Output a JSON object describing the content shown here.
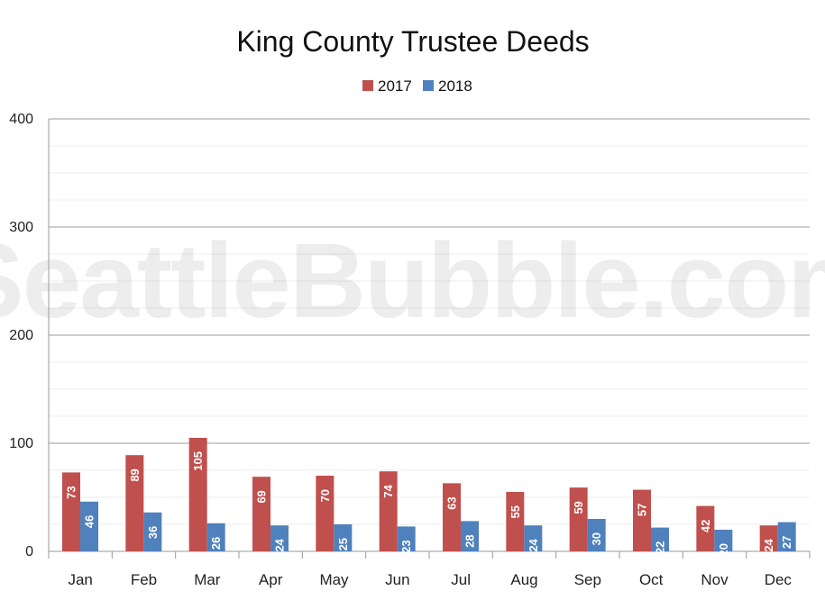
{
  "watermark": "SeattleBubble.com",
  "chart_data": {
    "type": "bar",
    "title": "King County Trustee Deeds",
    "xlabel": "",
    "ylabel": "",
    "categories": [
      "Jan",
      "Feb",
      "Mar",
      "Apr",
      "May",
      "Jun",
      "Jul",
      "Aug",
      "Sep",
      "Oct",
      "Nov",
      "Dec"
    ],
    "series": [
      {
        "name": "2017",
        "color": "#c0504d",
        "values": [
          73,
          89,
          105,
          69,
          70,
          74,
          63,
          55,
          59,
          57,
          42,
          24
        ]
      },
      {
        "name": "2018",
        "color": "#4f81bd",
        "values": [
          46,
          36,
          26,
          24,
          25,
          23,
          28,
          24,
          30,
          22,
          20,
          27
        ]
      }
    ],
    "ylim": [
      0,
      400
    ],
    "yticks": [
      0,
      100,
      200,
      300,
      400
    ],
    "minor_grid_step": 25,
    "grid": true,
    "legend_position": "top-center",
    "data_labels": true
  }
}
